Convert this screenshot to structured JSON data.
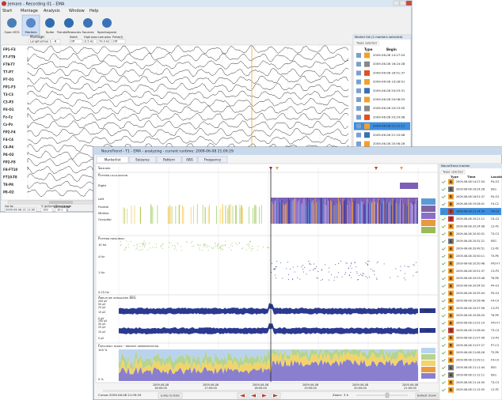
{
  "back_window": {
    "title": "Jemaro - Recording 01 - EMA",
    "menu": [
      "Start",
      "Montage",
      "Analysis",
      "Window",
      "Help"
    ],
    "toolbar": [
      "Open EEG",
      "Markers",
      "Spike",
      "TrendsMeasures",
      "Sources",
      "Spectrogram"
    ],
    "montage_label": "Montage:",
    "montage": "Longitudinal 1 - R",
    "filters": [
      {
        "label": "Notch",
        "value": "Off"
      },
      {
        "label": "High pass",
        "value": "0.5 Hz"
      },
      {
        "label": "Low pass",
        "value": "70.0 Hz"
      },
      {
        "label": "Pulse(t)",
        "value": "Off"
      }
    ],
    "channels": [
      "FP1-F3",
      "F7-FT9",
      "FT9-T7",
      "T7-P7",
      "P7-O1",
      "FP1-F3",
      "T3-C3",
      "C3-P3",
      "P3-O1",
      "Fz-Cz",
      "Cz-Pz",
      "FP2-F4",
      "F4-C4",
      "C4-P4",
      "P4-O2",
      "FP2-F8",
      "F8-FT10",
      "FT10-T8",
      "T8-P8",
      "P8-O2"
    ],
    "time_date": "2009-06-08",
    "times": [
      "21:07:00",
      "21:07:05",
      "21:07:10"
    ],
    "goto_label": "Go to:",
    "goto_value": "2009-06-08 21:11:00",
    "scale_label": "Y (µV/cm):",
    "scale_value": "100",
    "page_label": "Time/page",
    "page_value": "10 s",
    "marker_panel": {
      "title": "Marker list (1 markers selected)",
      "filter": "Types selected",
      "columns": [
        "Type",
        "Begin"
      ],
      "rows": [
        "2009-06-08 14:27:54",
        "2009-06-08 16:24:28",
        "2009-06-08 18:51:37",
        "2009-06-08 19:28:01",
        "2009-06-08 20:03:31",
        "2009-06-08 20:08:03",
        "2009-06-08 20:23:50",
        "2009-06-08 20:24:08",
        "2009-06-08 21:11:11",
        "2009-06-08 21:10:08",
        "2009-06-08 20:56:26",
        "2009-06-08 20:51:21",
        "2009-06-08 21:03:08",
        "2009-06-08 21:09:52",
        "2009-06-08 21:08:52",
        "2009-06-08 21:09:48",
        "2009-06-08 21:10:30"
      ],
      "selected": 8
    }
  },
  "front_window": {
    "title": "NeuroTrend - T1 - EMA - analyzing - current runtime: 2009-06-08 21:09:29",
    "tabs": [
      "Markerlist",
      "Seizures",
      "Pattern",
      "ABG",
      "Frequency"
    ],
    "sections": {
      "seizures": "Seizures",
      "localization": "Pattern localization",
      "frequency": "Pattern frequency",
      "aeeg": "Amplitude integrated EEG",
      "bands": "Frequency bands - percent representation"
    },
    "localization_rows": [
      "Right",
      "Left",
      "Frontal",
      "Midline",
      "Occipital"
    ],
    "frequency_ticks": [
      "10 Hz",
      "4 Hz",
      "1 Hz",
      "0.25 Hz"
    ],
    "aeeg_ticks": [
      "200 µV",
      "50 µV",
      "25 µV",
      "10 µV",
      "0 µV"
    ],
    "aeeg_sides": [
      "Right",
      "Left"
    ],
    "band_ticks": [
      "100 %",
      "0 %"
    ],
    "time_date": "2009-06-08",
    "times": [
      "16:00:00",
      "17:00:00",
      "18:00:00",
      "19:00:00",
      "20:00:00",
      "21:00:00"
    ],
    "cursor_label": "Cursor:",
    "cursor_value": "2009-06-08 21:09:29",
    "jump_button": "Jump to EEG",
    "zoom_label": "Zoom:",
    "zoom_value": "3 h",
    "default_zoom": "Default Zoom",
    "marker_panel": {
      "title": "NeuroTrend marker",
      "filter": "Types selected",
      "columns": [
        "Type",
        "Time",
        "Location"
      ],
      "rows": [
        [
          "R",
          "2009-06-08 14:27:54",
          "P4-O2"
        ],
        [
          "E",
          "2009-06-08 16:24:28",
          "EEG"
        ],
        [
          "R",
          "2009-06-08 18:51:37",
          "P4-O2"
        ],
        [
          "R",
          "2009-06-08 19:28:01",
          "F4-C2"
        ],
        [
          "T",
          "2009-06-08 21:14:50",
          "T4-C4"
        ],
        [
          "T",
          "2009-06-08 20:21:11",
          "C4-C2"
        ],
        [
          "R",
          "2009-06-08 20:24:08",
          "C2-P2"
        ],
        [
          "R",
          "2009-06-08 20:30:31",
          "T3-C3"
        ],
        [
          "E",
          "2009-06-08 20:31:21",
          "EEG"
        ],
        [
          "R",
          "2009-06-08 20:49:51",
          "C2-P2"
        ],
        [
          "R",
          "2009-06-08 20:50:11",
          "T5-P6"
        ],
        [
          "R",
          "2009-06-08 20:50:48",
          "FP2-F7"
        ],
        [
          "R",
          "2009-06-08 20:51:37",
          "C3-P3"
        ],
        [
          "R",
          "2009-06-08 20:53:48",
          "T6-P6"
        ],
        [
          "R",
          "2009-06-08 20:54:53",
          "P4-O2"
        ],
        [
          "R",
          "2009-06-08 20:55:04",
          "P4-O2"
        ],
        [
          "R",
          "2009-06-08 20:56:48",
          "F4-C4"
        ],
        [
          "R",
          "2009-06-08 20:57:56",
          "C3-P3"
        ],
        [
          "R",
          "2009-06-08 20:58:20",
          "T6-P6"
        ],
        [
          "R",
          "2009-06-08 21:01:19",
          "FP2-F7"
        ],
        [
          "T",
          "2009-06-08 21:06:04",
          "T3-C4"
        ],
        [
          "R",
          "2009-06-08 21:07:06",
          "C3-P3"
        ],
        [
          "R",
          "2009-06-08 21:07:27",
          "P7-C3"
        ],
        [
          "R",
          "2009-06-08 21:08:26",
          "T5-P6"
        ],
        [
          "R",
          "2009-06-08 21:09:11",
          "F4-C4"
        ],
        [
          "E",
          "2009-06-08 21:11:44",
          "EEG"
        ],
        [
          "E",
          "2009-06-08 21:12:11",
          "EEG"
        ],
        [
          "R",
          "2009-06-08 21:14:50",
          "T3-C3"
        ],
        [
          "R",
          "2009-06-08 21:15:55",
          "C2-P2"
        ]
      ],
      "selected": 4
    }
  }
}
